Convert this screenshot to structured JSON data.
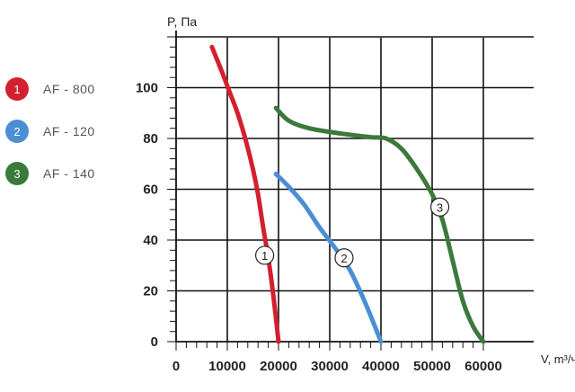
{
  "legend": [
    {
      "num": "1",
      "label": "AF - 800",
      "color": "#d3202f"
    },
    {
      "num": "2",
      "label": "AF - 120",
      "color": "#4a8fd4"
    },
    {
      "num": "3",
      "label": "AF - 140",
      "color": "#3b7a3c"
    }
  ],
  "chart_data": {
    "type": "line",
    "xlabel": "V, m³/ч",
    "ylabel": "P, Па",
    "xlim": [
      0,
      60000
    ],
    "ylim": [
      0,
      120
    ],
    "x_ticks": [
      0,
      10000,
      20000,
      30000,
      40000,
      50000,
      60000
    ],
    "y_ticks": [
      0,
      20,
      40,
      60,
      80,
      100
    ],
    "x_tick_labels": [
      "0",
      "10000",
      "20000",
      "30000",
      "40000",
      "50000",
      "60000"
    ],
    "y_tick_labels": [
      "0",
      "20",
      "40",
      "60",
      "80",
      "100"
    ],
    "grid": true,
    "series": [
      {
        "name": "1",
        "color": "#d3202f",
        "points": [
          [
            7000,
            116
          ],
          [
            9000,
            106
          ],
          [
            10500,
            98
          ],
          [
            12000,
            90
          ],
          [
            13500,
            80
          ],
          [
            15000,
            68
          ],
          [
            16000,
            58
          ],
          [
            17000,
            45
          ],
          [
            18000,
            33
          ],
          [
            19000,
            18
          ],
          [
            20000,
            0
          ]
        ],
        "label_at": [
          17300,
          34
        ]
      },
      {
        "name": "2",
        "color": "#4a8fd4",
        "points": [
          [
            19500,
            66
          ],
          [
            22000,
            61
          ],
          [
            25000,
            54
          ],
          [
            28000,
            45
          ],
          [
            31000,
            37
          ],
          [
            34000,
            28
          ],
          [
            37000,
            15
          ],
          [
            40000,
            0
          ]
        ],
        "label_at": [
          32800,
          33
        ]
      },
      {
        "name": "3",
        "color": "#3b7a3c",
        "points": [
          [
            19500,
            92
          ],
          [
            22000,
            87
          ],
          [
            26000,
            84
          ],
          [
            32000,
            82
          ],
          [
            38000,
            80.5
          ],
          [
            41000,
            80
          ],
          [
            44000,
            76
          ],
          [
            47000,
            68
          ],
          [
            50000,
            58
          ],
          [
            52000,
            48
          ],
          [
            54000,
            32
          ],
          [
            56000,
            16
          ],
          [
            58000,
            6
          ],
          [
            60000,
            0
          ]
        ],
        "label_at": [
          51500,
          53
        ]
      }
    ]
  }
}
